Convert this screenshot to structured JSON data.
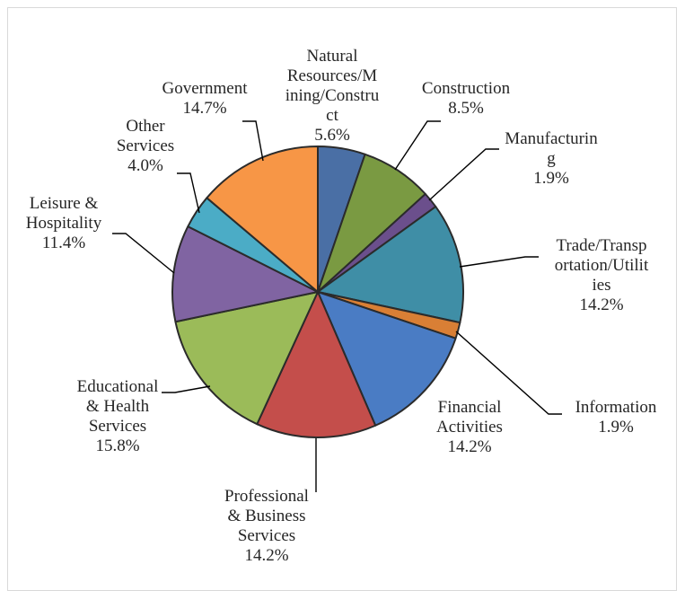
{
  "chart_data": {
    "type": "pie",
    "title": "",
    "start_angle_deg": 0,
    "direction": "clockwise",
    "slices": [
      {
        "label": "Natural Resources/Mining/Construct",
        "value": 5.6,
        "label_text": "5.6%",
        "label_lines": [
          "Natural",
          "Resources/M",
          "ining/Constru",
          "ct"
        ],
        "color": "#4a6fa5"
      },
      {
        "label": "Construction",
        "value": 8.5,
        "label_text": "8.5%",
        "label_lines": [
          "Construction"
        ],
        "color": "#7a9a42"
      },
      {
        "label": "Manufacturing",
        "value": 1.9,
        "label_text": "1.9%",
        "label_lines": [
          "Manufacturin",
          "g"
        ],
        "color": "#6b4f8c"
      },
      {
        "label": "Trade/Transportation/Utilities",
        "value": 14.2,
        "label_text": "14.2%",
        "label_lines": [
          "Trade/Transp",
          "ortation/Utilit",
          "ies"
        ],
        "color": "#3f8ea6"
      },
      {
        "label": "Information",
        "value": 1.9,
        "label_text": "1.9%",
        "label_lines": [
          "Information"
        ],
        "color": "#d97f35"
      },
      {
        "label": "Financial Activities",
        "value": 14.2,
        "label_text": "14.2%",
        "label_lines": [
          "Financial",
          "Activities"
        ],
        "color": "#4a7cc4"
      },
      {
        "label": "Professional & Business Services",
        "value": 14.2,
        "label_text": "14.2%",
        "label_lines": [
          "Professional",
          "& Business",
          "Services"
        ],
        "color": "#c44e4b"
      },
      {
        "label": "Educational & Health Services",
        "value": 15.8,
        "label_text": "15.8%",
        "label_lines": [
          "Educational",
          "& Health",
          "Services"
        ],
        "color": "#9bbb59"
      },
      {
        "label": "Leisure & Hospitality",
        "value": 11.4,
        "label_text": "11.4%",
        "label_lines": [
          "Leisure &",
          "Hospitality"
        ],
        "color": "#8064a2"
      },
      {
        "label": "Other Services",
        "value": 4.0,
        "label_text": "4.0%",
        "label_lines": [
          "Other",
          "Services"
        ],
        "color": "#4bacc6"
      },
      {
        "label": "Government",
        "value": 14.7,
        "label_text": "14.7%",
        "label_lines": [
          "Government"
        ],
        "color": "#f79646"
      }
    ],
    "legend": "none",
    "data_labels": "outside with leader lines"
  }
}
